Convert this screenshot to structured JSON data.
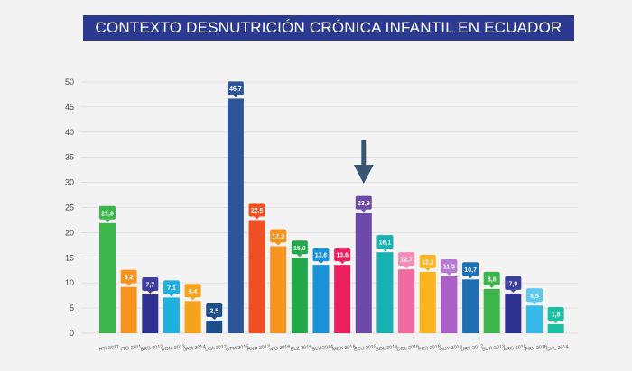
{
  "chart_data": {
    "type": "bar",
    "title": "CONTEXTO DESNUTRICIÓN CRÓNICA INFANTIL EN ECUADOR",
    "xlabel": "",
    "ylabel": "",
    "ylim": [
      0,
      50
    ],
    "yticks": [
      0,
      5,
      10,
      15,
      20,
      25,
      30,
      35,
      40,
      45,
      50
    ],
    "grid": true,
    "categories": [
      "HTI 2017",
      "TTO 2011",
      "BRB 2012",
      "DOM 2013",
      "JAM 2014",
      "LCA 2012",
      "GTM 2015",
      "HND 2012",
      "NIC 2016",
      "BLZ 2016",
      "SLV 2014",
      "MEX 2016",
      "ECU 2018",
      "BOL 2016",
      "COL 2016",
      "PER 2018",
      "GUY 2019",
      "URY 2017",
      "SUR 2013",
      "ARG 2018",
      "PRY 2016",
      "CHL 2014"
    ],
    "values": [
      21.9,
      9.2,
      7.7,
      7.1,
      6.4,
      2.5,
      46.7,
      22.5,
      17.3,
      15.0,
      13.6,
      13.6,
      23.9,
      16.1,
      12.7,
      12.2,
      11.3,
      10.7,
      8.8,
      7.9,
      5.5,
      1.8
    ],
    "value_labels": [
      "21,9",
      "9,2",
      "7,7",
      "7,1",
      "6,4",
      "2,5",
      "46,7",
      "22,5",
      "17,3",
      "15,0",
      "13,6",
      "13,6",
      "23,9",
      "16,1",
      "12,7",
      "12,2",
      "11,3",
      "10,7",
      "8,8",
      "7,9",
      "5,5",
      "1,8"
    ],
    "colors": [
      "#3cb54a",
      "#f7941d",
      "#2e3192",
      "#1fb0e0",
      "#f7a21d",
      "#1c4f8a",
      "#2e5597",
      "#f04e23",
      "#f7941d",
      "#20a84a",
      "#1a93d6",
      "#ec1f5e",
      "#6d4aa8",
      "#16b1b0",
      "#f06aa0",
      "#fab420",
      "#a95fc6",
      "#1f6fb5",
      "#3cb54a",
      "#2e3192",
      "#36b9e8",
      "#1bbfa3"
    ],
    "label_colors": [
      "#3cb54a",
      "#f7941d",
      "#3c3d9e",
      "#1fb0e0",
      "#f7a21d",
      "#1c4f8a",
      "#2e5597",
      "#f04e23",
      "#f7941d",
      "#20a84a",
      "#1a93d6",
      "#ec1f5e",
      "#6d4aa8",
      "#16b1b0",
      "#f48ab6",
      "#fab420",
      "#b779d4",
      "#1f6fb5",
      "#3cb54a",
      "#3c3d9e",
      "#5cc8ee",
      "#1bbfa3"
    ],
    "annotation": {
      "type": "arrow-down",
      "target": "ECU 2018"
    }
  }
}
